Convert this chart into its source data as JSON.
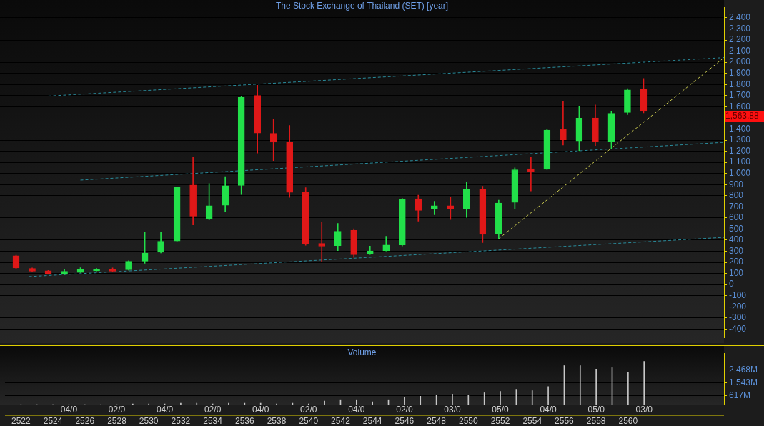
{
  "chart_data": [
    {
      "type": "candlestick",
      "title": "The Stock Exchange of Thailand (SET) [year]",
      "series": [
        {
          "x": [
            2522,
            2523,
            2524,
            2525,
            2526,
            2527,
            2528,
            2529,
            2530,
            2531,
            2532,
            2533,
            2534,
            2535,
            2536,
            2537,
            2538,
            2539,
            2540,
            2541,
            2542,
            2543,
            2544,
            2545,
            2546,
            2547,
            2548,
            2549,
            2550,
            2551,
            2552,
            2553,
            2554,
            2555,
            2556,
            2557,
            2558,
            2559,
            2560,
            2561
          ],
          "ohlc": [
            [
              260,
              265,
              145,
              150
            ],
            [
              145,
              150,
              118,
              120
            ],
            [
              125,
              128,
              93,
              95
            ],
            [
              92,
              139,
              90,
              120
            ],
            [
              110,
              151,
              108,
              135
            ],
            [
              124,
              146,
              122,
              141
            ],
            [
              141,
              150,
              115,
              120
            ],
            [
              134,
              214,
              129,
              209
            ],
            [
              211,
              471,
              192,
              283
            ],
            [
              291,
              471,
              285,
              389
            ],
            [
              393,
              880,
              390,
              876
            ],
            [
              896,
              1149,
              537,
              616
            ],
            [
              595,
              909,
              582,
              709
            ],
            [
              713,
              971,
              653,
              889
            ],
            [
              892,
              1694,
              810,
              1684
            ],
            [
              1702,
              1793,
              1183,
              1363
            ],
            [
              1361,
              1487,
              1115,
              1281
            ],
            [
              1281,
              1431,
              785,
              830
            ],
            [
              828,
              872,
              353,
              368
            ],
            [
              370,
              562,
              203,
              345
            ],
            [
              351,
              550,
              306,
              480
            ],
            [
              488,
              502,
              244,
              269
            ],
            [
              273,
              347,
              270,
              302
            ],
            [
              304,
              434,
              302,
              356
            ],
            [
              357,
              776,
              347,
              771
            ],
            [
              773,
              805,
              570,
              667
            ],
            [
              678,
              750,
              628,
              709
            ],
            [
              709,
              787,
              585,
              680
            ],
            [
              678,
              921,
              605,
              859
            ],
            [
              859,
              884,
              378,
              452
            ],
            [
              459,
              760,
              409,
              734
            ],
            [
              740,
              1050,
              678,
              1033
            ],
            [
              1043,
              1149,
              843,
              1014
            ],
            [
              1037,
              1396,
              1035,
              1390
            ],
            [
              1400,
              1648,
              1256,
              1301
            ],
            [
              1293,
              1607,
              1204,
              1498
            ],
            [
              1499,
              1617,
              1250,
              1287
            ],
            [
              1289,
              1561,
              1219,
              1541
            ],
            [
              1549,
              1762,
              1529,
              1752
            ],
            [
              1756,
              1855,
              1545,
              1563.88
            ]
          ],
          "colors": [
            "#e01818",
            "#e01818",
            "#e01818",
            "#22e04a",
            "#22e04a",
            "#22e04a",
            "#e01818",
            "#22e04a",
            "#22e04a",
            "#22e04a",
            "#22e04a",
            "#e01818",
            "#22e04a",
            "#22e04a",
            "#22e04a",
            "#e01818",
            "#e01818",
            "#e01818",
            "#e01818",
            "#e01818",
            "#22e04a",
            "#e01818",
            "#22e04a",
            "#22e04a",
            "#22e04a",
            "#e01818",
            "#22e04a",
            "#e01818",
            "#22e04a",
            "#e01818",
            "#22e04a",
            "#22e04a",
            "#e01818",
            "#22e04a",
            "#e01818",
            "#22e04a",
            "#e01818",
            "#22e04a",
            "#22e04a",
            "#e01818"
          ]
        },
        {
          "type": "line",
          "x": [
            2524,
            2566
          ],
          "values": [
            1696,
            2042
          ],
          "color": "#2a8c9c",
          "line_style": "dashed"
        },
        {
          "type": "line",
          "x": [
            2526,
            2566
          ],
          "values": [
            940,
            1280
          ],
          "color": "#2a8c9c",
          "line_style": "dashed"
        },
        {
          "type": "line",
          "x": [
            2522.8,
            2566
          ],
          "values": [
            72,
            425
          ],
          "color": "#2a8c9c",
          "line_style": "dashed"
        },
        {
          "type": "line",
          "x": [
            2552,
            2566
          ],
          "values": [
            413,
            2042
          ],
          "color": "#c8c850",
          "line_style": "dashed"
        }
      ],
      "xlim": [
        2521,
        2566
      ],
      "xticks": [
        2522,
        2524,
        2526,
        2528,
        2530,
        2532,
        2534,
        2536,
        2538,
        2540,
        2542,
        2544,
        2546,
        2548,
        2550,
        2552,
        2554,
        2556,
        2558,
        2560
      ],
      "ylim": [
        -480,
        2495
      ],
      "yticks": [
        -400,
        -300,
        -200,
        -100,
        0,
        100,
        200,
        300,
        400,
        500,
        600,
        700,
        800,
        900,
        {
          "value": 1000,
          "label": "1,000"
        },
        {
          "value": 1100,
          "label": "1,100"
        },
        {
          "value": 1200,
          "label": "1,200"
        },
        {
          "value": 1300,
          "label": "1,300"
        },
        {
          "value": 1400,
          "label": "1,400"
        },
        {
          "value": 1600,
          "label": "1,600"
        },
        {
          "value": 1700,
          "label": "1,700"
        },
        {
          "value": 1800,
          "label": "1,800"
        },
        {
          "value": 1900,
          "label": "1,900"
        },
        {
          "value": 2000,
          "label": "2,000"
        },
        {
          "value": 2100,
          "label": "2,100"
        },
        {
          "value": 2200,
          "label": "2,200"
        },
        {
          "value": 2300,
          "label": "2,300"
        },
        {
          "value": 2400,
          "label": "2,400"
        }
      ],
      "grid": "y",
      "tick_labels": "y",
      "annotations": [
        "1,563.88"
      ]
    },
    {
      "type": "bar",
      "title": "Volume",
      "x": [
        2522,
        2523,
        2524,
        2525,
        2526,
        2527,
        2528,
        2529,
        2530,
        2531,
        2532,
        2533,
        2534,
        2535,
        2536,
        2537,
        2538,
        2539,
        2540,
        2541,
        2542,
        2543,
        2544,
        2545,
        2546,
        2547,
        2548,
        2549,
        2550,
        2551,
        2552,
        2553,
        2554,
        2555,
        2556,
        2557,
        2558,
        2559,
        2560,
        2561
      ],
      "values": [
        0,
        0,
        0,
        0,
        0,
        0,
        0,
        50,
        50,
        50,
        100,
        100,
        50,
        100,
        100,
        100,
        50,
        100,
        50,
        250,
        350,
        350,
        200,
        350,
        550,
        600,
        700,
        750,
        650,
        850,
        950,
        1100,
        1000,
        1300,
        2800,
        2800,
        2550,
        2650,
        2350,
        3100
      ],
      "color": "#c8c8c8",
      "xlim": [
        2521,
        2566
      ],
      "xticks": [
        2522,
        2524,
        2526,
        2528,
        2530,
        2532,
        2534,
        2536,
        2538,
        2540,
        2542,
        2544,
        2546,
        2548,
        2550,
        2552,
        2554,
        2556,
        2558,
        2560
      ],
      "ylim": [
        0,
        3690
      ],
      "yticks": [
        {
          "value": 617,
          "label": "617M"
        },
        {
          "value": 1543,
          "label": "1,543M"
        },
        {
          "value": 2468,
          "label": "2,468M"
        }
      ],
      "grid": "y",
      "annotations": [
        "04/0",
        "02/0",
        "04/0",
        "02/0",
        "04/0",
        "02/0",
        "04/0",
        "02/0",
        "03/0",
        "05/0",
        "04/0",
        "05/0",
        "03/0"
      ]
    }
  ]
}
